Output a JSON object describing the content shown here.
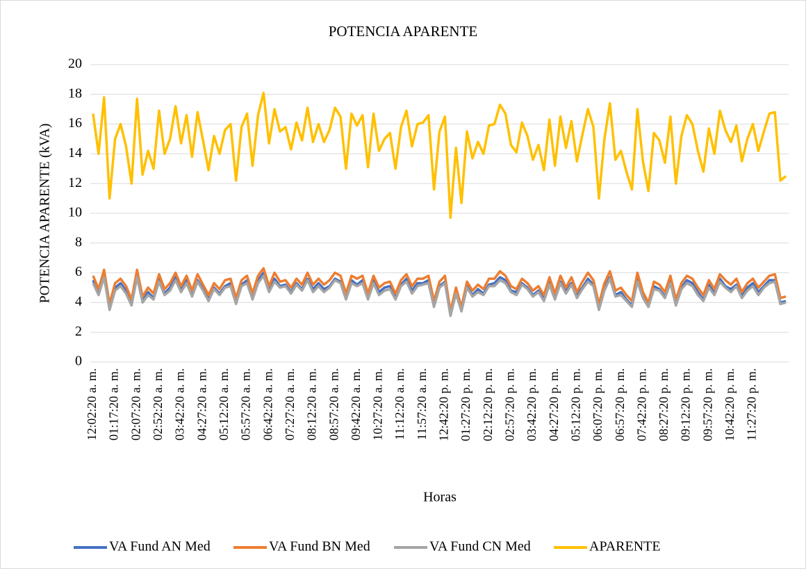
{
  "chart_data": {
    "type": "line",
    "title": "POTENCIA APARENTE",
    "x_label": "Horas",
    "y_label": "POTENCIA APARENTE (kVA)",
    "categories": [
      "12:02:20 a. m.",
      null,
      null,
      null,
      "01:17:20 a. m.",
      null,
      null,
      null,
      "02:07:20 a. m.",
      null,
      null,
      null,
      "02:52:20 a. m.",
      null,
      null,
      null,
      "03:42:20 a. m.",
      null,
      null,
      null,
      "04:27:20 a. m.",
      null,
      null,
      null,
      "05:12:20 a. m.",
      null,
      null,
      null,
      "05:57:20 a. m.",
      null,
      null,
      null,
      "06:42:20 a. m.",
      null,
      null,
      null,
      "07:27:20 a. m.",
      null,
      null,
      null,
      "08:12:20 a. m.",
      null,
      null,
      null,
      "08:57:20 a. m.",
      null,
      null,
      null,
      "09:42:20 a. m.",
      null,
      null,
      null,
      "10:27:20 a. m.",
      null,
      null,
      null,
      "11:12:20 a. m.",
      null,
      null,
      null,
      "11:57:20 a. m.",
      null,
      null,
      null,
      "12:42:20 p. m.",
      null,
      null,
      null,
      "01:27:20 p. m.",
      null,
      null,
      null,
      "02:12:20 p. m.",
      null,
      null,
      null,
      "02:57:20 p. m.",
      null,
      null,
      null,
      "03:42:20 p. m.",
      null,
      null,
      null,
      "04:27:20 p. m.",
      null,
      null,
      null,
      "05:12:20 p. m.",
      null,
      null,
      null,
      "06:07:20 p. m.",
      null,
      null,
      null,
      "06:57:20 p. m.",
      null,
      null,
      null,
      "07:42:20 p. m.",
      null,
      null,
      null,
      "08:27:20 p. m.",
      null,
      null,
      null,
      "09:12:20 p. m.",
      null,
      null,
      null,
      "09:57:20 p. m.",
      null,
      null,
      null,
      "10:42:20 p. m.",
      null,
      null,
      null,
      "11:27:20 p. m.",
      null,
      null,
      null,
      null,
      null,
      null
    ],
    "series": [
      {
        "name": "VA Fund AN Med",
        "color": "#4472c4",
        "values": [
          5.5,
          4.6,
          5.9,
          3.6,
          5.0,
          5.3,
          4.8,
          4.0,
          5.8,
          4.2,
          4.7,
          4.3,
          5.6,
          4.6,
          5.0,
          5.7,
          4.9,
          5.5,
          4.6,
          5.5,
          4.9,
          4.3,
          5.0,
          4.6,
          5.1,
          5.3,
          4.0,
          5.2,
          5.5,
          4.4,
          5.5,
          6.0,
          4.9,
          5.6,
          5.1,
          5.2,
          4.7,
          5.3,
          4.9,
          5.6,
          4.9,
          5.3,
          4.9,
          5.1,
          5.6,
          5.4,
          4.3,
          5.5,
          5.2,
          5.5,
          4.3,
          5.5,
          4.7,
          5.0,
          5.1,
          4.3,
          5.2,
          5.6,
          4.8,
          5.3,
          5.3,
          5.5,
          3.8,
          5.1,
          5.4,
          3.2,
          4.8,
          3.5,
          5.1,
          4.5,
          4.9,
          4.6,
          5.2,
          5.3,
          5.7,
          5.5,
          4.8,
          4.7,
          5.3,
          5.0,
          4.5,
          4.8,
          4.3,
          5.4,
          4.4,
          5.4,
          4.8,
          5.3,
          4.5,
          5.0,
          5.6,
          5.2,
          3.6,
          5.0,
          5.7,
          4.5,
          4.7,
          4.2,
          3.8,
          5.6,
          4.5,
          3.8,
          5.1,
          4.9,
          4.4,
          5.4,
          4.0,
          5.0,
          5.5,
          5.3,
          4.7,
          4.2,
          5.2,
          4.6,
          5.6,
          5.1,
          4.9,
          5.2,
          4.5,
          5.0,
          5.3,
          4.7,
          5.1,
          5.5,
          5.5,
          4.0,
          4.1
        ]
      },
      {
        "name": "VA Fund BN Med",
        "color": "#ed7d31",
        "values": [
          5.8,
          4.9,
          6.2,
          3.9,
          5.3,
          5.6,
          5.1,
          4.2,
          6.2,
          4.4,
          5.0,
          4.6,
          5.9,
          4.9,
          5.3,
          6.0,
          5.1,
          5.8,
          4.8,
          5.9,
          5.2,
          4.5,
          5.3,
          4.9,
          5.5,
          5.6,
          4.3,
          5.5,
          5.8,
          4.6,
          5.8,
          6.3,
          5.1,
          6.0,
          5.4,
          5.5,
          5.0,
          5.6,
          5.2,
          6.0,
          5.2,
          5.6,
          5.2,
          5.5,
          6.0,
          5.8,
          4.6,
          5.8,
          5.6,
          5.8,
          4.6,
          5.8,
          5.0,
          5.3,
          5.4,
          4.6,
          5.5,
          5.9,
          5.1,
          5.6,
          5.6,
          5.8,
          4.1,
          5.4,
          5.8,
          3.4,
          5.0,
          3.7,
          5.4,
          4.8,
          5.2,
          4.9,
          5.6,
          5.6,
          6.1,
          5.8,
          5.1,
          4.9,
          5.6,
          5.3,
          4.8,
          5.1,
          4.5,
          5.7,
          4.6,
          5.8,
          5.0,
          5.7,
          4.7,
          5.4,
          6.0,
          5.5,
          3.9,
          5.3,
          6.1,
          4.8,
          5.0,
          4.5,
          4.1,
          6.0,
          4.7,
          4.0,
          5.4,
          5.2,
          4.7,
          5.8,
          4.2,
          5.3,
          5.8,
          5.6,
          5.0,
          4.5,
          5.5,
          4.9,
          5.9,
          5.5,
          5.2,
          5.6,
          4.7,
          5.3,
          5.6,
          5.0,
          5.4,
          5.8,
          5.9,
          4.3,
          4.4
        ]
      },
      {
        "name": "VA Fund CN Med",
        "color": "#a5a5a5",
        "values": [
          5.3,
          4.5,
          5.7,
          3.5,
          4.8,
          5.1,
          4.6,
          3.8,
          5.7,
          4.0,
          4.5,
          4.2,
          5.4,
          4.5,
          4.8,
          5.5,
          4.7,
          5.3,
          4.4,
          5.4,
          4.8,
          4.1,
          4.9,
          4.5,
          5.0,
          5.1,
          3.9,
          5.1,
          5.3,
          4.2,
          5.3,
          5.8,
          4.7,
          5.4,
          5.0,
          5.1,
          4.6,
          5.2,
          4.8,
          5.5,
          4.7,
          5.1,
          4.7,
          5.0,
          5.5,
          5.3,
          4.2,
          5.3,
          5.1,
          5.3,
          4.2,
          5.3,
          4.5,
          4.8,
          4.9,
          4.2,
          5.1,
          5.4,
          4.6,
          5.1,
          5.2,
          5.3,
          3.7,
          5.0,
          5.3,
          3.1,
          4.6,
          3.4,
          5.0,
          4.4,
          4.7,
          4.5,
          5.1,
          5.1,
          5.5,
          5.3,
          4.7,
          4.5,
          5.2,
          4.9,
          4.4,
          4.7,
          4.1,
          5.2,
          4.2,
          5.3,
          4.6,
          5.2,
          4.3,
          4.9,
          5.4,
          5.1,
          3.5,
          4.8,
          5.6,
          4.4,
          4.5,
          4.1,
          3.7,
          5.4,
          4.3,
          3.7,
          4.9,
          4.8,
          4.3,
          5.3,
          3.8,
          4.9,
          5.3,
          5.1,
          4.5,
          4.1,
          5.0,
          4.5,
          5.4,
          5.0,
          4.7,
          5.1,
          4.3,
          4.8,
          5.1,
          4.5,
          5.0,
          5.3,
          5.4,
          3.9,
          4.0
        ]
      },
      {
        "name": "APARENTE",
        "color": "#ffc000",
        "values": [
          16.7,
          14.0,
          17.8,
          11.0,
          15.0,
          16.0,
          14.5,
          12.0,
          17.7,
          12.6,
          14.2,
          13.0,
          16.9,
          14.0,
          15.0,
          17.2,
          14.7,
          16.6,
          13.8,
          16.8,
          14.9,
          12.9,
          15.2,
          14.0,
          15.6,
          16.0,
          12.2,
          15.8,
          16.7,
          13.2,
          16.6,
          18.1,
          14.7,
          17.0,
          15.5,
          15.8,
          14.3,
          16.1,
          14.9,
          17.1,
          14.8,
          16.0,
          14.8,
          15.6,
          17.1,
          16.5,
          13.0,
          16.7,
          15.9,
          16.6,
          13.1,
          16.7,
          14.2,
          15.0,
          15.4,
          13.0,
          15.8,
          16.9,
          14.5,
          16.0,
          16.1,
          16.6,
          11.6,
          15.5,
          16.5,
          9.7,
          14.4,
          10.7,
          15.5,
          13.7,
          14.8,
          14.0,
          15.9,
          16.0,
          17.3,
          16.7,
          14.6,
          14.1,
          16.1,
          15.2,
          13.6,
          14.6,
          12.9,
          16.3,
          13.2,
          16.5,
          14.4,
          16.2,
          13.5,
          15.3,
          17.0,
          15.8,
          11.0,
          15.0,
          17.4,
          13.6,
          14.2,
          12.8,
          11.6,
          17.0,
          13.5,
          11.5,
          15.4,
          14.9,
          13.4,
          16.5,
          12.0,
          15.2,
          16.6,
          16.0,
          14.2,
          12.8,
          15.7,
          14.0,
          16.9,
          15.6,
          14.8,
          15.9,
          13.5,
          15.0,
          16.0,
          14.2,
          15.5,
          16.7,
          16.8,
          12.2,
          12.5
        ]
      }
    ],
    "ylim": [
      0,
      20
    ],
    "yticks": [
      0,
      2,
      4,
      6,
      8,
      10,
      12,
      14,
      16,
      18,
      20
    ],
    "grid": true,
    "legend": "bottom"
  }
}
